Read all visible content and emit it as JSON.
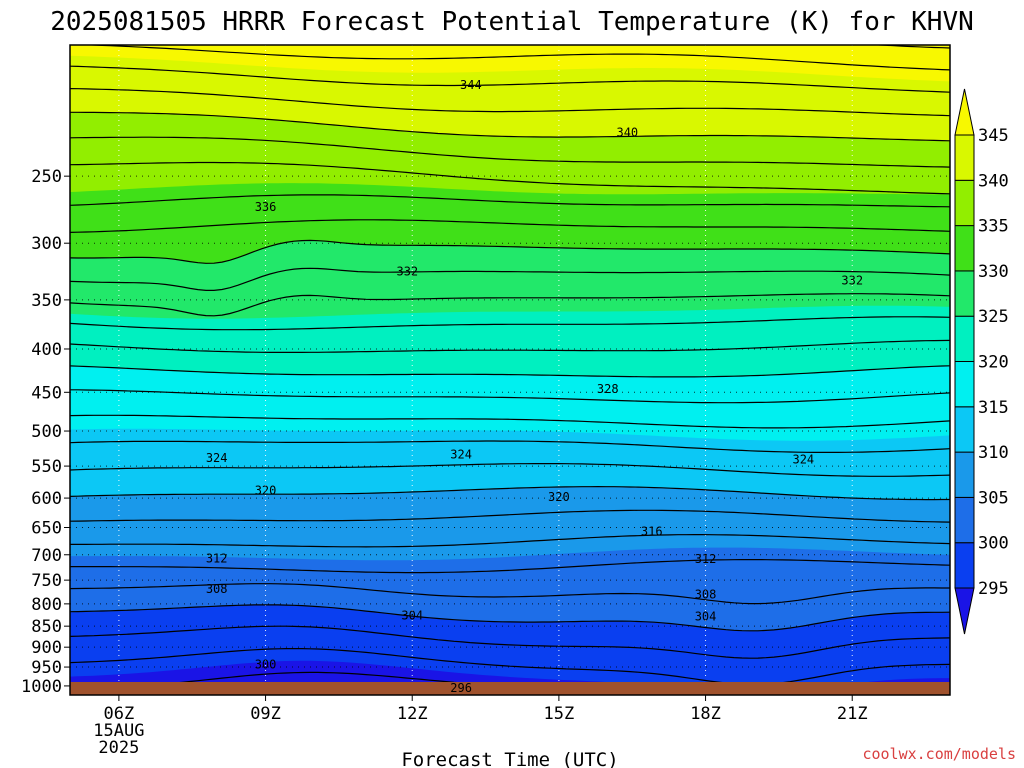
{
  "chart_data": {
    "type": "heatmap",
    "title": "2025081505 HRRR Forecast Potential Temperature (K) for KHVN",
    "xlabel": "Forecast Time (UTC)",
    "ylabel": "",
    "x_range_hours": [
      5,
      23
    ],
    "y_range_hpa": [
      1025,
      175
    ],
    "y_scale": "log-pressure",
    "grid": "dotted",
    "x_ticks": [
      {
        "hour": 6,
        "label": "06Z",
        "sub": [
          "15AUG",
          "2025"
        ]
      },
      {
        "hour": 9,
        "label": "09Z"
      },
      {
        "hour": 12,
        "label": "12Z"
      },
      {
        "hour": 15,
        "label": "15Z"
      },
      {
        "hour": 18,
        "label": "18Z"
      },
      {
        "hour": 21,
        "label": "21Z"
      }
    ],
    "y_ticks": [
      250,
      300,
      350,
      400,
      450,
      500,
      550,
      600,
      650,
      700,
      750,
      800,
      850,
      900,
      950,
      1000
    ],
    "colorbar": {
      "position": "right",
      "levels": [
        295,
        300,
        305,
        310,
        315,
        320,
        325,
        330,
        335,
        340,
        345
      ],
      "colors": [
        "#1a14e6",
        "#0a3ff0",
        "#1e6ee8",
        "#1a99ea",
        "#0cc8f5",
        "#00f0f0",
        "#00f0c0",
        "#22e86a",
        "#40e018",
        "#92ee00",
        "#d9f800",
        "#f8f800"
      ]
    },
    "contour_labels": [
      {
        "hour": 13.2,
        "p": 195,
        "text": "344"
      },
      {
        "hour": 16.4,
        "p": 222,
        "text": "340"
      },
      {
        "hour": 9.0,
        "p": 272,
        "text": "336"
      },
      {
        "hour": 11.9,
        "p": 324,
        "text": "332"
      },
      {
        "hour": 21.0,
        "p": 332,
        "text": "332"
      },
      {
        "hour": 16.0,
        "p": 446,
        "text": "328"
      },
      {
        "hour": 8.0,
        "p": 538,
        "text": "324"
      },
      {
        "hour": 13.0,
        "p": 533,
        "text": "324"
      },
      {
        "hour": 20.0,
        "p": 540,
        "text": "324"
      },
      {
        "hour": 9.0,
        "p": 588,
        "text": "320"
      },
      {
        "hour": 15.0,
        "p": 598,
        "text": "320"
      },
      {
        "hour": 16.9,
        "p": 657,
        "text": "316"
      },
      {
        "hour": 8.0,
        "p": 707,
        "text": "312"
      },
      {
        "hour": 18.0,
        "p": 708,
        "text": "312"
      },
      {
        "hour": 8.0,
        "p": 768,
        "text": "308"
      },
      {
        "hour": 18.0,
        "p": 780,
        "text": "308"
      },
      {
        "hour": 12.0,
        "p": 826,
        "text": "304"
      },
      {
        "hour": 18.0,
        "p": 828,
        "text": "304"
      },
      {
        "hour": 9.0,
        "p": 944,
        "text": "300"
      },
      {
        "hour": 13.0,
        "p": 1005,
        "text": "296"
      }
    ]
  },
  "credit": "coolwx.com/models"
}
